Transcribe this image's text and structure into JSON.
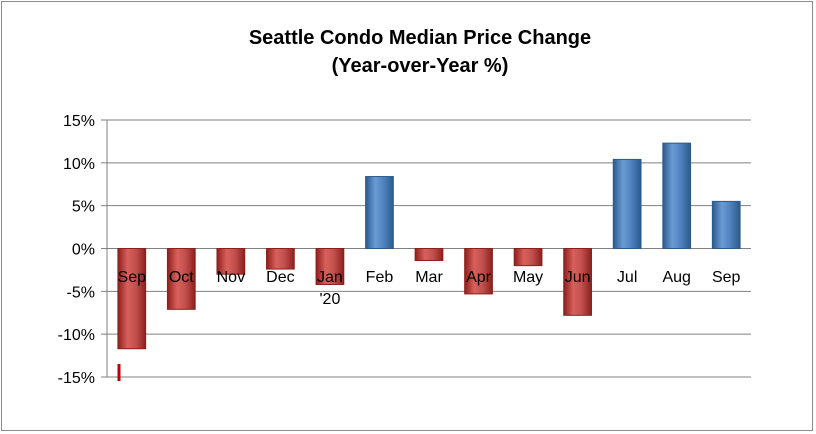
{
  "chart_data": {
    "type": "bar",
    "title": "Seattle Condo Median Price Change",
    "subtitle": "(Year-over-Year %)",
    "xlabel": "",
    "ylabel": "",
    "categories": [
      "Sep",
      "Oct",
      "Nov",
      "Dec",
      "Jan\n'20",
      "Feb",
      "Mar",
      "Apr",
      "May",
      "Jun",
      "Jul",
      "Aug",
      "Sep"
    ],
    "values": [
      -11.7,
      -7.1,
      -3.0,
      -2.4,
      -4.2,
      8.4,
      -1.4,
      -5.3,
      -2.0,
      -7.8,
      10.4,
      12.3,
      5.5
    ],
    "ylim": [
      -15,
      15
    ],
    "yticks": [
      15,
      10,
      5,
      0,
      -5,
      -10,
      -15
    ],
    "ytick_labels": [
      "15%",
      "10%",
      "5%",
      "0%",
      "-5%",
      "-10%",
      "-15%"
    ],
    "grid": true,
    "colors": {
      "negative": "#c0504d",
      "negative_dark": "#8c1f1c",
      "positive": "#4f81bd",
      "positive_dark": "#2c5a8c",
      "grid": "#808080",
      "marker": "#c00000"
    }
  }
}
